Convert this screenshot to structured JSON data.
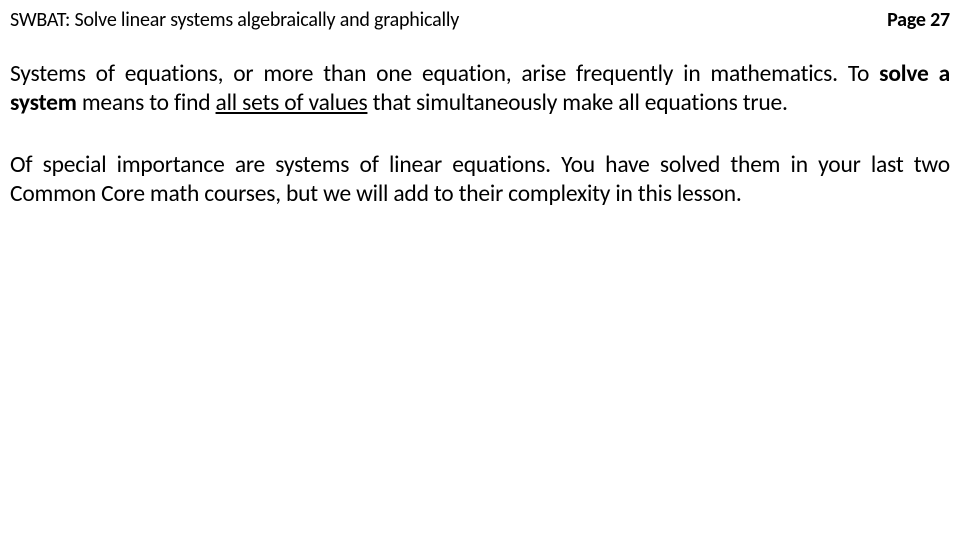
{
  "header": {
    "swbat_label": "SWBAT:",
    "swbat_text": "Solve linear systems algebraically and graphically",
    "page_label": "Page",
    "page_number": "27"
  },
  "body": {
    "p1_a": "Systems of equations, or more than one equation, arise frequently in mathematics. To ",
    "p1_bold": "solve a system",
    "p1_b": " means to find ",
    "p1_ul": "all sets of values",
    "p1_c": " that simultaneously make all equations true.",
    "p2": "Of special importance are systems of linear equations. You have solved them in your last two Common Core math courses, but we will add to their complexity in this lesson."
  },
  "style": {
    "background_color": "#ffffff",
    "text_color": "#000000",
    "header_fontsize": 20,
    "body_fontsize": 23.5,
    "line_height": 1.22
  }
}
